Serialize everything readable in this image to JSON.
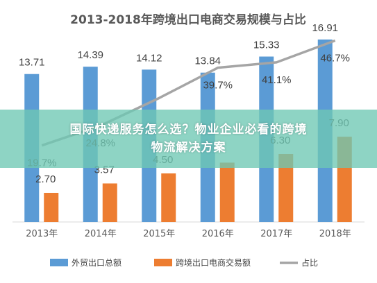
{
  "chart_data": {
    "type": "bar",
    "title": "2013-2018年跨境出口电商交易规模与占比",
    "categories": [
      "2013年",
      "2014年",
      "2015年",
      "2016年",
      "2017年",
      "2018年"
    ],
    "series": [
      {
        "name": "外贸出口总额",
        "type": "bar",
        "values": [
          13.71,
          14.39,
          14.12,
          13.84,
          15.33,
          16.91
        ],
        "labels": [
          "13.71",
          "14.39",
          "14.12",
          "13.84",
          "15.33",
          "16.91"
        ]
      },
      {
        "name": "跨境出口电商交易额",
        "type": "bar",
        "values": [
          2.7,
          3.57,
          4.5,
          5.5,
          6.3,
          7.9
        ],
        "labels": [
          "2.70",
          "3.57",
          "4.50",
          "",
          "6.30",
          "7.90"
        ]
      },
      {
        "name": "占比",
        "type": "line",
        "values": [
          19.7,
          24.8,
          31.9,
          39.7,
          41.1,
          46.7
        ],
        "labels": [
          "19.7%",
          "24.8%",
          "",
          "39.7%",
          "41.1%",
          "46.7%"
        ]
      }
    ],
    "ylim": [
      0,
      18
    ],
    "ylim_pct": [
      0,
      50
    ],
    "legend": "bottom",
    "grid": false,
    "colors": {
      "bar1": "#5b9bd5",
      "bar2": "#ed7d31",
      "line": "#a5a5a5"
    }
  },
  "banner": {
    "line1": "国际快递服务怎么选？物业企业必看的跨境",
    "line2": "物流解决方案"
  }
}
